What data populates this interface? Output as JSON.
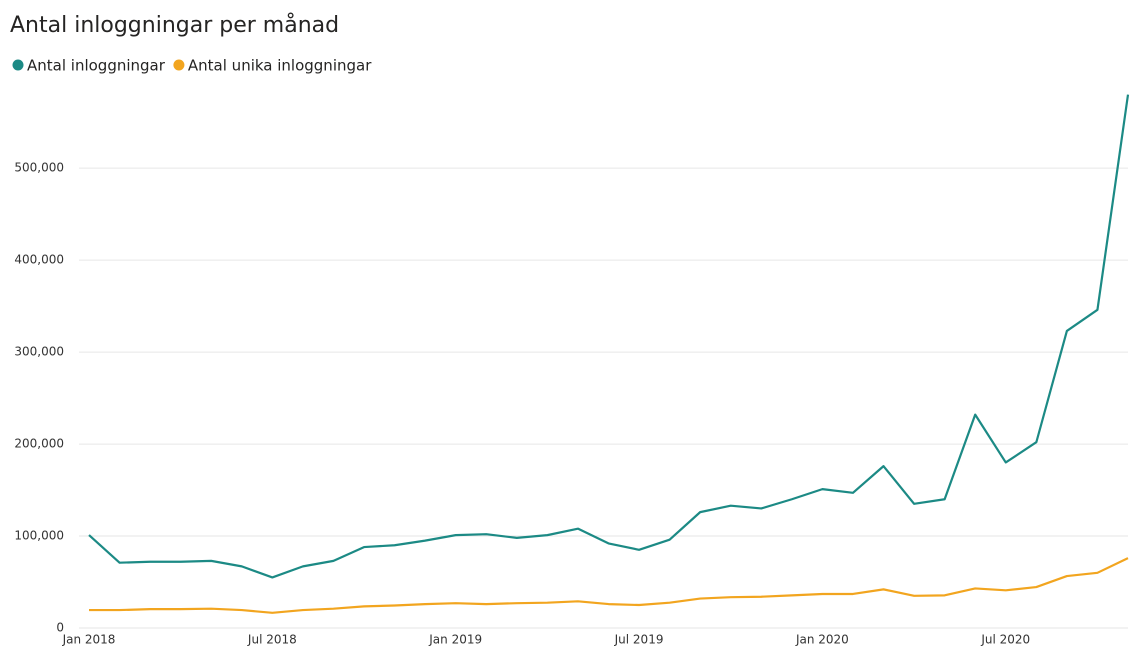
{
  "chart_data": {
    "type": "line",
    "title": "Antal inloggningar per månad",
    "categories": [
      "Jan 2018",
      null,
      null,
      null,
      null,
      null,
      "Jul 2018",
      null,
      null,
      null,
      null,
      null,
      "Jan 2019",
      null,
      null,
      null,
      null,
      null,
      "Jul 2019",
      null,
      null,
      null,
      null,
      null,
      "Jan 2020",
      null,
      null,
      null,
      null,
      null,
      "Jul 2020",
      null,
      null,
      null,
      null
    ],
    "series": [
      {
        "name": "Antal inloggningar",
        "color": "#1c8a85",
        "values": [
          101000,
          71000,
          72000,
          72000,
          73000,
          67000,
          55000,
          67000,
          73000,
          88000,
          90000,
          95000,
          101000,
          102000,
          98000,
          101000,
          108000,
          92000,
          85000,
          96000,
          126000,
          133000,
          130000,
          140000,
          151000,
          147000,
          176000,
          135000,
          140000,
          232000,
          180000,
          202000,
          323000,
          346000,
          580000
        ]
      },
      {
        "name": "Antal unika inloggningar",
        "color": "#f2a51f",
        "values": [
          19500,
          19500,
          20500,
          20500,
          21000,
          19500,
          16500,
          19500,
          21000,
          23500,
          24500,
          26000,
          27000,
          26000,
          27000,
          27500,
          29000,
          26000,
          25000,
          27500,
          32000,
          33500,
          34000,
          35500,
          37000,
          37000,
          42000,
          35000,
          35500,
          43000,
          41000,
          44500,
          56500,
          60000,
          76000
        ]
      }
    ],
    "ylim": [
      0,
      585000
    ],
    "yticks": [
      0,
      {
        "value": 100000,
        "label": "100,000"
      },
      {
        "value": 200000,
        "label": "200,000"
      },
      {
        "value": 300000,
        "label": "300,000"
      },
      {
        "value": 400000,
        "label": "400,000"
      },
      {
        "value": 500000,
        "label": "500,000"
      }
    ],
    "grid": true
  }
}
